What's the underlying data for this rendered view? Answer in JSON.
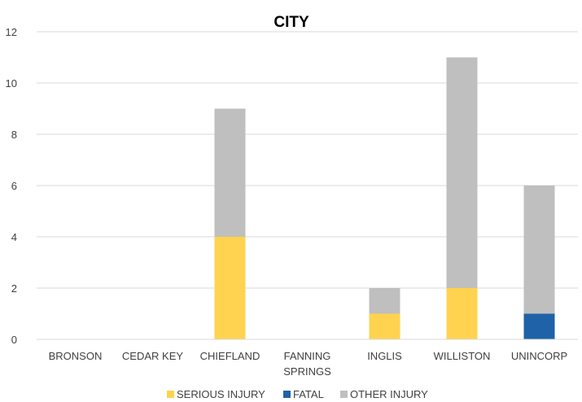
{
  "chart_data": {
    "type": "bar",
    "stacked": true,
    "title": "CITY",
    "xlabel": "",
    "ylabel": "",
    "categories": [
      [
        "BRONSON"
      ],
      [
        "CEDAR KEY"
      ],
      [
        "CHIEFLAND"
      ],
      [
        "FANNING",
        "SPRINGS"
      ],
      [
        "INGLIS"
      ],
      [
        "WILLISTON"
      ],
      [
        "UNINCORP"
      ]
    ],
    "series": [
      {
        "name": "SERIOUS INJURY",
        "color": "#FFD34F",
        "values": [
          0,
          0,
          4,
          0,
          1,
          2,
          0
        ]
      },
      {
        "name": "FATAL",
        "color": "#1F62A8",
        "values": [
          0,
          0,
          0,
          0,
          0,
          0,
          1
        ]
      },
      {
        "name": "OTHER INJURY",
        "color": "#BFBFBF",
        "values": [
          0,
          0,
          5,
          0,
          1,
          9,
          5
        ]
      }
    ],
    "ylim": [
      0,
      12
    ],
    "yticks": [
      0,
      2,
      4,
      6,
      8,
      10,
      12
    ],
    "grid": true,
    "legend": "bottom"
  }
}
